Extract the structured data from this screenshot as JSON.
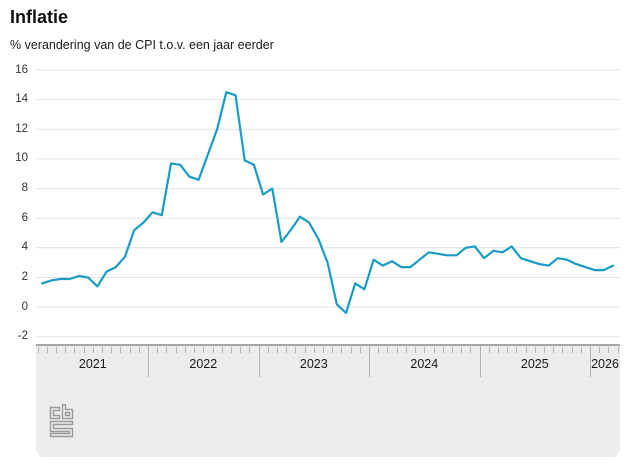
{
  "header": {
    "title": "Inflatie",
    "subtitle": "% verandering van de CPI t.o.v. een jaar eerder"
  },
  "chart_data": {
    "type": "line",
    "title": "Inflatie",
    "subtitle": "% verandering van de CPI t.o.v. een jaar eerder",
    "xlabel": "",
    "ylabel": "% verandering van de CPI t.o.v. een jaar eerder",
    "ylim": [
      -2,
      16
    ],
    "yticks": [
      16,
      14,
      12,
      10,
      8,
      6,
      4,
      2,
      0,
      -2
    ],
    "grid": true,
    "legend": false,
    "x_years": [
      "2021",
      "2022",
      "2023",
      "2024",
      "2025",
      "2026"
    ],
    "x_frequency": "monthly",
    "x_start_month": "2021-01",
    "x_end_month": "2026-03",
    "series": [
      {
        "name": "Inflatie (CPI)",
        "color": "#189cc5",
        "values": [
          1.6,
          1.8,
          1.9,
          1.9,
          2.1,
          2.0,
          1.4,
          2.4,
          2.7,
          3.4,
          5.2,
          5.7,
          6.4,
          6.2,
          9.7,
          9.6,
          8.8,
          8.6,
          10.3,
          12.0,
          14.5,
          14.3,
          9.9,
          9.6,
          7.6,
          8.0,
          4.4,
          5.2,
          6.1,
          5.7,
          4.6,
          3.0,
          0.2,
          -0.4,
          1.6,
          1.2,
          3.2,
          2.8,
          3.1,
          2.7,
          2.7,
          3.2,
          3.7,
          3.6,
          3.5,
          3.5,
          4.0,
          4.1,
          3.3,
          3.8,
          3.7,
          4.1,
          3.3,
          3.1,
          2.9,
          2.8,
          3.3,
          3.2,
          2.9,
          2.7,
          2.5,
          2.5,
          2.8
        ]
      }
    ]
  },
  "colors": {
    "line": "#189cc5",
    "gridline": "#e3e3e3",
    "axis_band_bg": "#ececec",
    "axis_band_edge": "#a6a6a6",
    "tick": "#b3b3b3",
    "text": "#1a1a1a",
    "logo": "#9a9a9a"
  },
  "footer": {
    "logo_name": "cbs-logo"
  }
}
